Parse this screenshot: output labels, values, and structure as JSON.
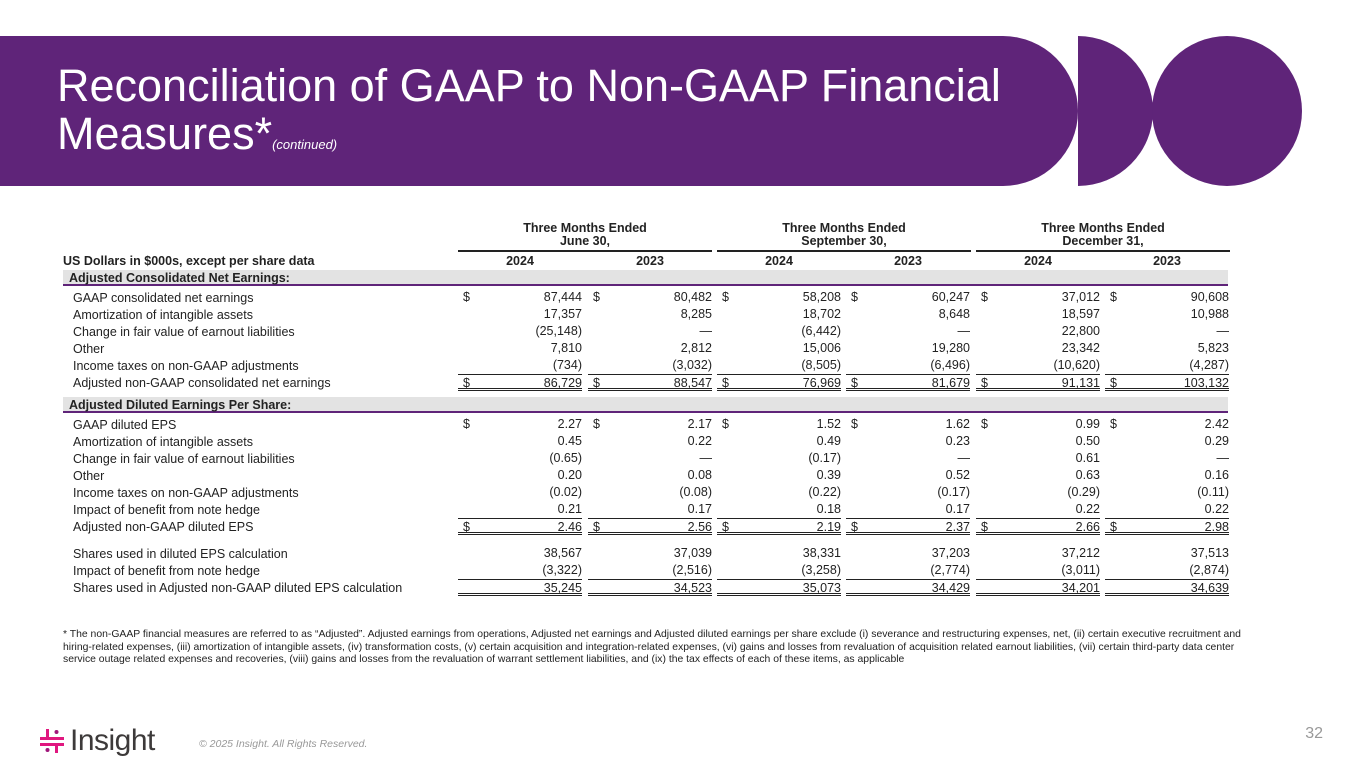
{
  "title": "Reconciliation of GAAP to Non-GAAP Financial Measures*",
  "title_suffix": "(continued)",
  "brand_color": "#5f2479",
  "table": {
    "row_header": "US Dollars in $000s, except per share data",
    "groups": [
      "Three Months Ended\nJune 30,",
      "Three Months Ended\nSeptember 30,",
      "Three Months Ended\nDecember 31,"
    ],
    "years": [
      "2024",
      "2023",
      "2024",
      "2023",
      "2024",
      "2023"
    ],
    "sections": [
      {
        "title": "Adjusted Consolidated Net Earnings:",
        "rows": [
          {
            "label": "GAAP consolidated net earnings",
            "dollar": true,
            "values": [
              "87,444",
              "80,482",
              "58,208",
              "60,247",
              "37,012",
              "90,608"
            ]
          },
          {
            "label": "Amortization of intangible assets",
            "values": [
              "17,357",
              "8,285",
              "18,702",
              "8,648",
              "18,597",
              "10,988"
            ]
          },
          {
            "label": "Change in fair value of earnout liabilities",
            "values": [
              "(25,148)",
              "—",
              "(6,442)",
              "—",
              "22,800",
              "—"
            ]
          },
          {
            "label": "Other",
            "values": [
              "7,810",
              "2,812",
              "15,006",
              "19,280",
              "23,342",
              "5,823"
            ]
          },
          {
            "label": "Income taxes on non-GAAP adjustments",
            "values": [
              "(734)",
              "(3,032)",
              "(8,505)",
              "(6,496)",
              "(10,620)",
              "(4,287)"
            ]
          },
          {
            "label": "Adjusted non-GAAP consolidated net earnings",
            "dollar": true,
            "total": true,
            "values": [
              "86,729",
              "88,547",
              "76,969",
              "81,679",
              "91,131",
              "103,132"
            ]
          }
        ]
      },
      {
        "title": "Adjusted Diluted Earnings Per Share:",
        "rows": [
          {
            "label": "GAAP diluted EPS",
            "dollar": true,
            "values": [
              "2.27",
              "2.17",
              "1.52",
              "1.62",
              "0.99",
              "2.42"
            ]
          },
          {
            "label": "Amortization of intangible assets",
            "values": [
              "0.45",
              "0.22",
              "0.49",
              "0.23",
              "0.50",
              "0.29"
            ]
          },
          {
            "label": "Change in fair value of earnout liabilities",
            "values": [
              "(0.65)",
              "—",
              "(0.17)",
              "—",
              "0.61",
              "—"
            ]
          },
          {
            "label": "Other",
            "values": [
              "0.20",
              "0.08",
              "0.39",
              "0.52",
              "0.63",
              "0.16"
            ]
          },
          {
            "label": "Income taxes on non-GAAP adjustments",
            "values": [
              "(0.02)",
              "(0.08)",
              "(0.22)",
              "(0.17)",
              "(0.29)",
              "(0.11)"
            ]
          },
          {
            "label": "Impact of benefit from note hedge",
            "values": [
              "0.21",
              "0.17",
              "0.18",
              "0.17",
              "0.22",
              "0.22"
            ]
          },
          {
            "label": "Adjusted non-GAAP diluted EPS",
            "dollar": true,
            "total": true,
            "values": [
              "2.46",
              "2.56",
              "2.19",
              "2.37",
              "2.66",
              "2.98"
            ]
          }
        ]
      },
      {
        "title": "",
        "rows": [
          {
            "label": "Shares used in diluted EPS calculation",
            "values": [
              "38,567",
              "37,039",
              "38,331",
              "37,203",
              "37,212",
              "37,513"
            ]
          },
          {
            "label": "Impact of benefit from note hedge",
            "values": [
              "(3,322)",
              "(2,516)",
              "(3,258)",
              "(2,774)",
              "(3,011)",
              "(2,874)"
            ]
          },
          {
            "label": "Shares used in Adjusted non-GAAP diluted EPS calculation",
            "total": true,
            "values": [
              "35,245",
              "34,523",
              "35,073",
              "34,429",
              "34,201",
              "34,639"
            ]
          }
        ]
      }
    ]
  },
  "footnote": "* The non-GAAP financial measures are referred to as “Adjusted”. Adjusted earnings from operations, Adjusted net earnings and Adjusted diluted earnings per share exclude (i) severance and restructuring expenses, net, (ii) certain executive recruitment and hiring-related expenses, (iii) amortization of intangible assets, (iv) transformation costs, (v) certain acquisition and integration-related expenses, (vi) gains and losses from revaluation of acquisition related earnout liabilities, (vii) certain third-party data center service outage related expenses and recoveries, (viii) gains and losses from the revaluation of warrant settlement liabilities, and (ix) the tax effects of each of these items, as applicable",
  "logo_text": "Insight",
  "copyright": "© 2025 Insight. All Rights Reserved.",
  "page_number": "32",
  "currency_symbol": "$"
}
